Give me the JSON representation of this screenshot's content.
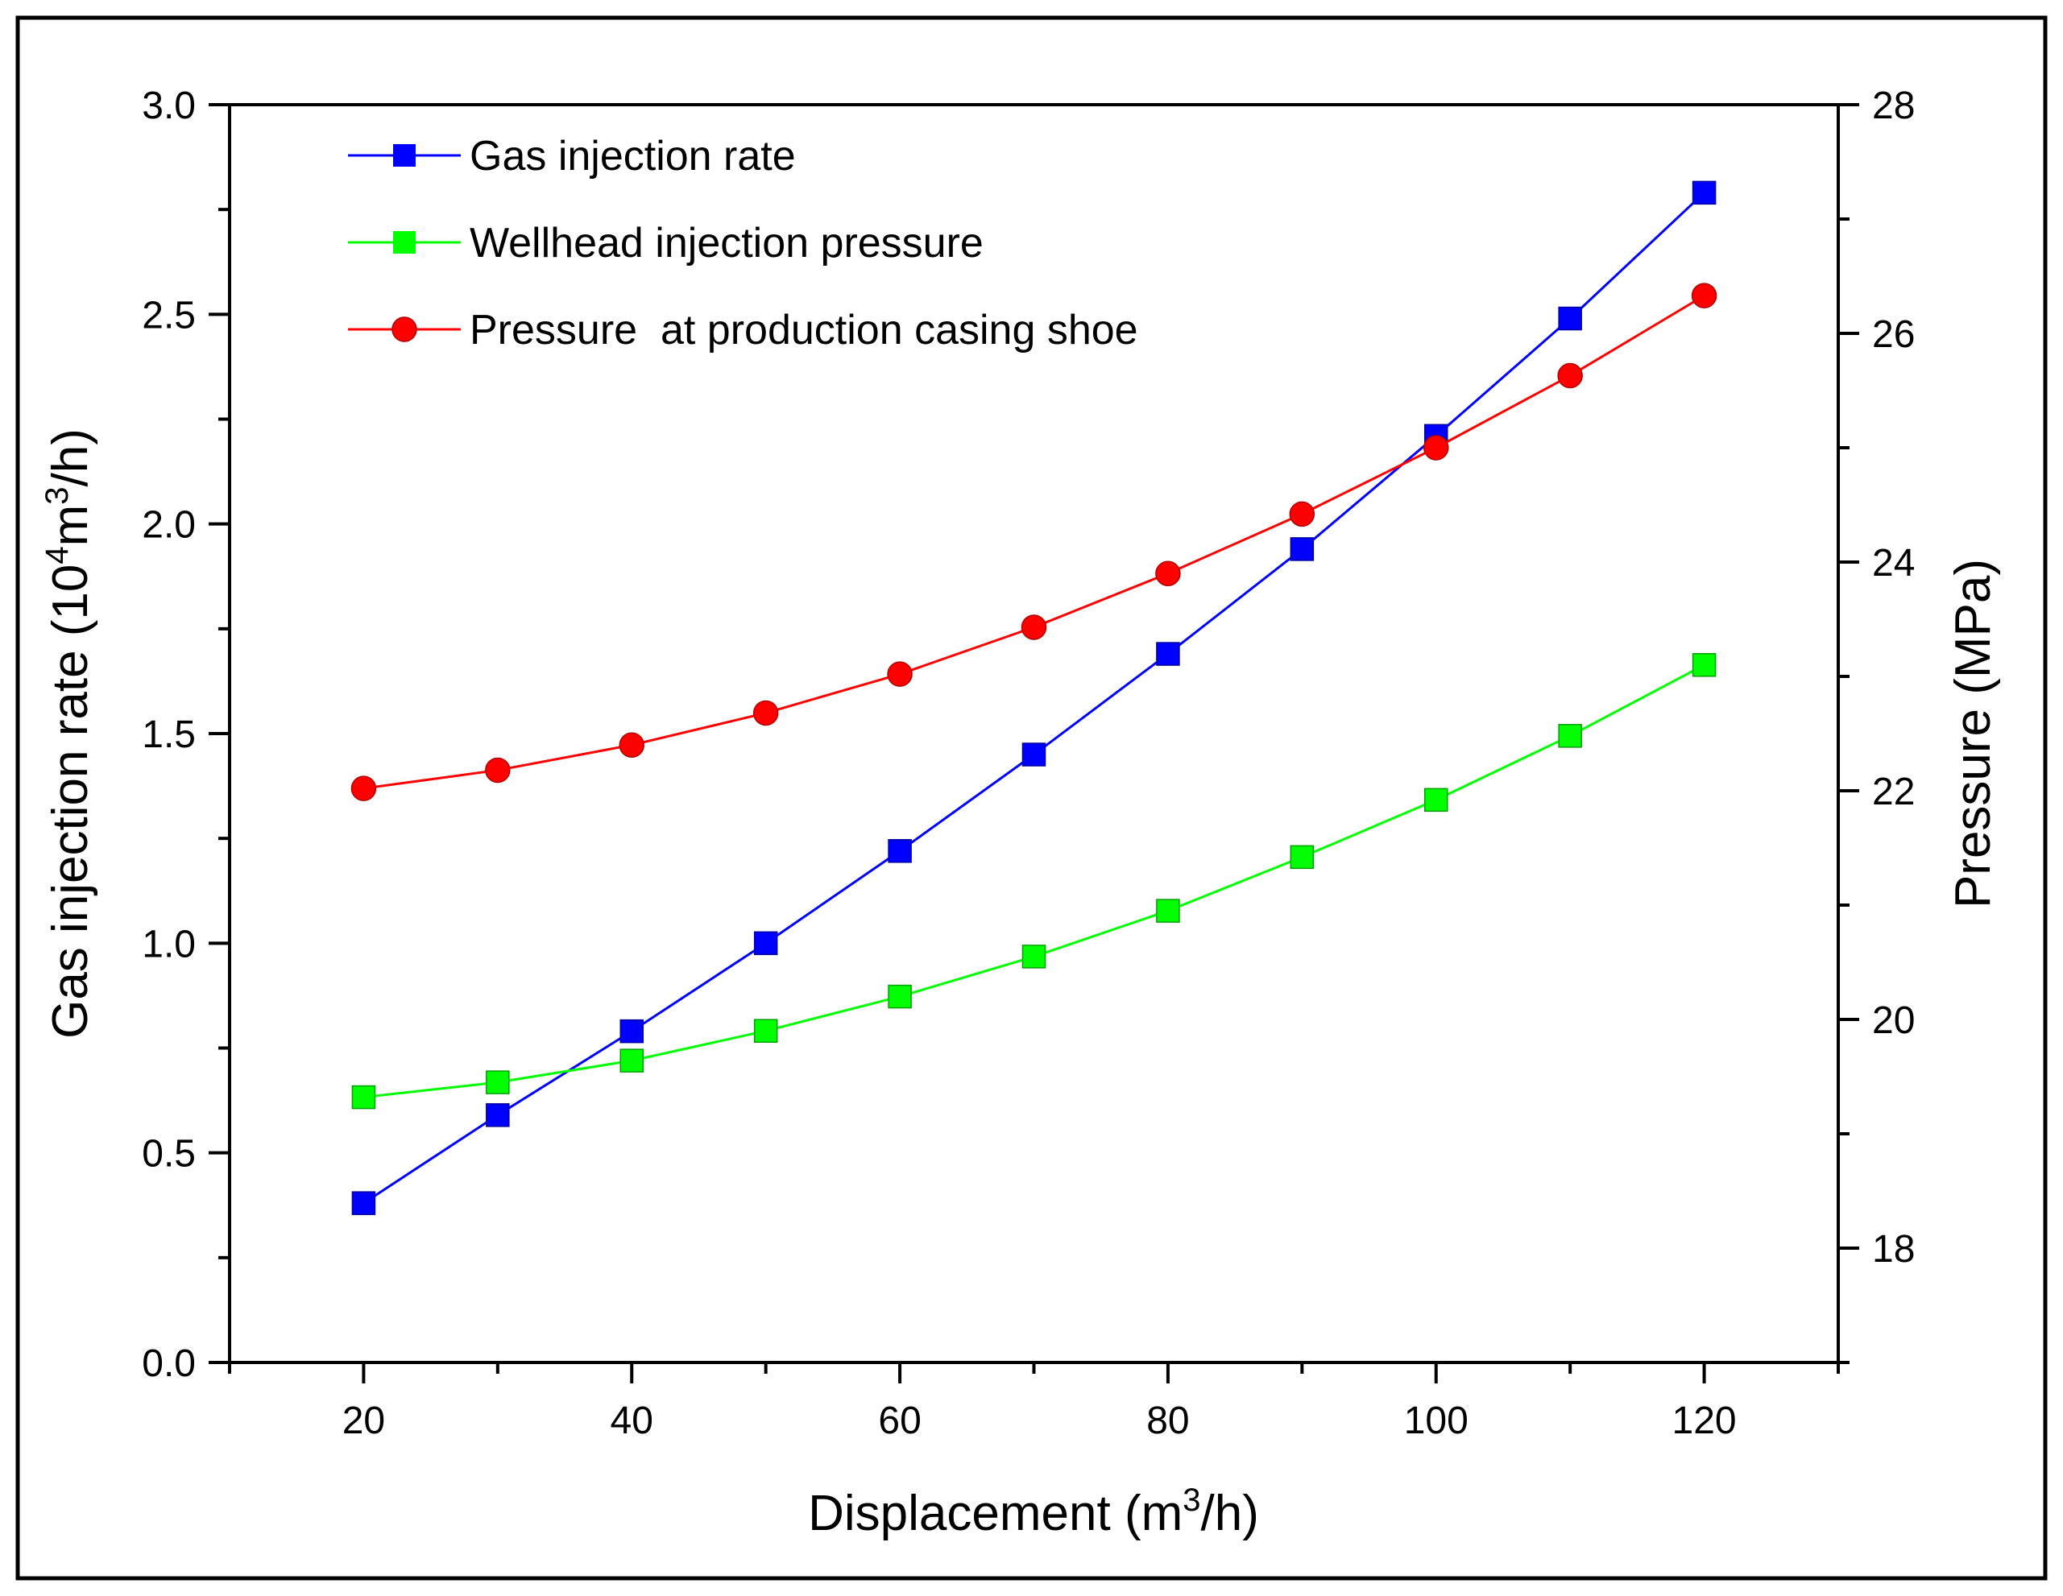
{
  "chart_data": {
    "type": "line",
    "x": [
      20,
      30,
      40,
      50,
      60,
      70,
      80,
      90,
      100,
      110,
      120
    ],
    "xlim": [
      10,
      130
    ],
    "xticks": [
      20,
      40,
      60,
      80,
      100,
      120
    ],
    "xtick_labels": [
      "20",
      "40",
      "60",
      "80",
      "100",
      "120"
    ],
    "xlabel": {
      "pre": "Displacement (m",
      "sup": "3",
      "post": "/h)"
    },
    "ylabel_left": {
      "pre": "Gas injection rate (10",
      "sup1": "4",
      "mid": "m",
      "sup2": "3",
      "post": "/h)"
    },
    "ylabel_right": "Pressure (MPa)",
    "ylim_left": [
      0,
      3.0
    ],
    "yticks_left": [
      0.0,
      0.5,
      1.0,
      1.5,
      2.0,
      2.5,
      3.0
    ],
    "ytick_labels_left": [
      "0.0",
      "0.5",
      "1.0",
      "1.5",
      "2.0",
      "2.5",
      "3.0"
    ],
    "ylim_right": [
      17,
      28
    ],
    "yticks_right": [
      18,
      20,
      22,
      24,
      26,
      28
    ],
    "ytick_labels_right": [
      "18",
      "20",
      "22",
      "24",
      "26",
      "28"
    ],
    "legend_position": "top-left",
    "grid": false,
    "series": [
      {
        "name": "Gas injection rate",
        "axis": "left",
        "marker": "square",
        "color": "#0000ff",
        "values": [
          0.38,
          0.59,
          0.79,
          1.0,
          1.22,
          1.45,
          1.69,
          1.94,
          2.21,
          2.49,
          2.79
        ]
      },
      {
        "name": "Wellhead injection pressure",
        "axis": "right",
        "marker": "square",
        "color": "#00ff00",
        "values": [
          19.32,
          19.45,
          19.64,
          19.9,
          20.2,
          20.55,
          20.95,
          21.42,
          21.92,
          22.48,
          23.1
        ]
      },
      {
        "name": "Pressure  at production casing shoe",
        "axis": "right",
        "marker": "circle",
        "color": "#ff0000",
        "values": [
          22.02,
          22.18,
          22.4,
          22.68,
          23.02,
          23.43,
          23.9,
          24.42,
          25.0,
          25.63,
          26.33
        ]
      }
    ]
  }
}
